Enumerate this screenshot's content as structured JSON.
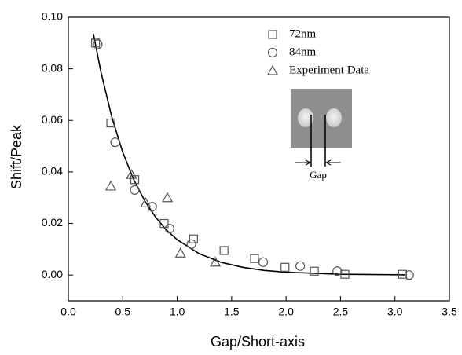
{
  "chart_data": {
    "type": "scatter",
    "xlabel": "Gap/Short-axis",
    "ylabel": "Shift/Peak",
    "xlim": [
      0,
      3.5
    ],
    "ylim": [
      -0.01,
      0.1
    ],
    "xticks": [
      {
        "value": 0,
        "label": "0.0"
      },
      {
        "value": 0.5,
        "label": "0.5"
      },
      {
        "value": 1,
        "label": "1.0"
      },
      {
        "value": 1.5,
        "label": "1.5"
      },
      {
        "value": 2,
        "label": "2.0"
      },
      {
        "value": 2.5,
        "label": "2.5"
      },
      {
        "value": 3,
        "label": "3.0"
      },
      {
        "value": 3.5,
        "label": "3.5"
      }
    ],
    "yticks": [
      {
        "value": 0,
        "label": "0.00"
      },
      {
        "value": 0.02,
        "label": "0.02"
      },
      {
        "value": 0.04,
        "label": "0.04"
      },
      {
        "value": 0.06,
        "label": "0.06"
      },
      {
        "value": 0.08,
        "label": "0.08"
      },
      {
        "value": 0.1,
        "label": "0.10"
      }
    ],
    "series": [
      {
        "name": "72nm",
        "marker": "square",
        "color": "#555555",
        "x": [
          0.25,
          0.39,
          0.61,
          0.88,
          1.15,
          1.43,
          1.71,
          1.99,
          2.26,
          2.54,
          3.07
        ],
        "values": [
          0.09,
          0.059,
          0.037,
          0.02,
          0.014,
          0.0095,
          0.0064,
          0.003,
          0.0015,
          0.0003,
          0.0003
        ]
      },
      {
        "name": "84nm",
        "marker": "circle",
        "color": "#555555",
        "x": [
          0.27,
          0.43,
          0.61,
          0.77,
          0.93,
          1.13,
          1.79,
          2.13,
          2.47,
          3.13
        ],
        "values": [
          0.0895,
          0.0515,
          0.033,
          0.0265,
          0.018,
          0.012,
          0.005,
          0.0035,
          0.0015,
          0
        ]
      },
      {
        "name": "Experiment Data",
        "marker": "triangle",
        "color": "#555555",
        "x": [
          0.39,
          0.58,
          0.71,
          0.91,
          1.03,
          1.35
        ],
        "values": [
          0.0345,
          0.039,
          0.028,
          0.03,
          0.0085,
          0.005
        ]
      }
    ],
    "curve": {
      "color": "#000000",
      "x": [
        0.23,
        0.3,
        0.4,
        0.5,
        0.6,
        0.7,
        0.8,
        0.9,
        1.0,
        1.2,
        1.4,
        1.6,
        1.8,
        2.0,
        2.5,
        3.1
      ],
      "values": [
        0.0936,
        0.0786,
        0.0612,
        0.0476,
        0.0371,
        0.0289,
        0.0225,
        0.0175,
        0.0137,
        0.0083,
        0.005,
        0.003,
        0.0018,
        0.0011,
        0.0003,
        0.0001
      ]
    },
    "inset_label": "Gap"
  }
}
